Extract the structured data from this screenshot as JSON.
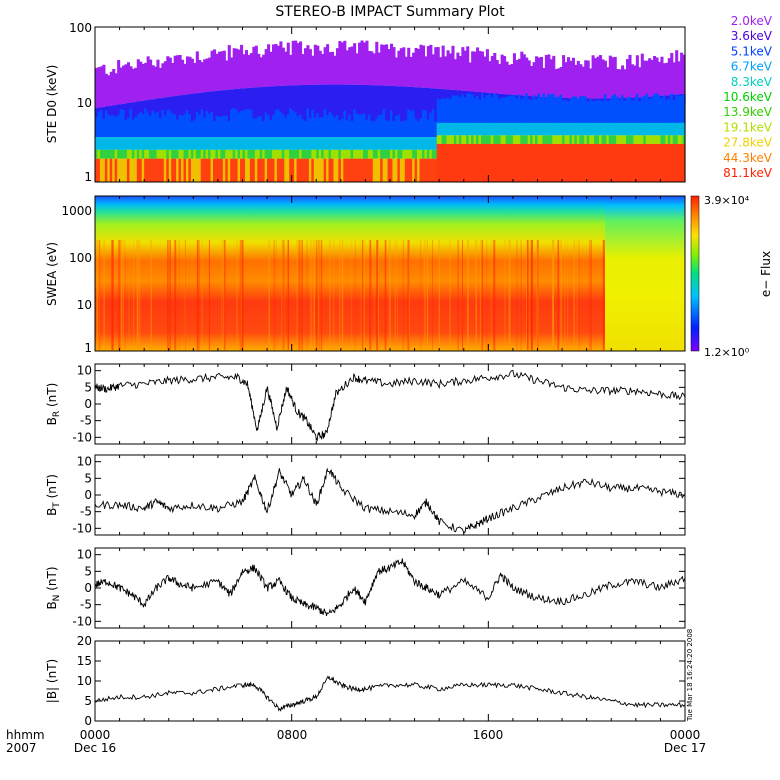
{
  "chart_data": {
    "type": "line",
    "title": "STEREO-B IMPACT Summary Plot",
    "x_axis": {
      "tick_labels": [
        "0000",
        "0800",
        "1600",
        "0000"
      ],
      "sub_labels": [
        "Dec 16",
        "",
        "",
        "Dec 17"
      ],
      "corner_label_1": "hhmm",
      "corner_label_2": "2007",
      "range_hours": [
        0,
        24
      ]
    },
    "timestamp": "Tue Mar 18 16:24:20 2008",
    "panels": [
      {
        "id": "ste",
        "ylabel": "STE D0 (keV)",
        "scale": "log",
        "ylim": [
          1,
          100
        ],
        "ytick_labels": [
          "100",
          "10",
          "1"
        ],
        "legend": [
          "2.0keV",
          "3.6keV",
          "5.1keV",
          "6.7keV",
          "8.3keV",
          "10.6keV",
          "13.9keV",
          "19.1keV",
          "27.8keV",
          "44.3keV",
          "81.1keV"
        ],
        "legend_colors": [
          "#a020f0",
          "#4b00e0",
          "#0040ff",
          "#00a0ff",
          "#00d0c0",
          "#00d000",
          "#30d000",
          "#b0e000",
          "#f0d000",
          "#ff8000",
          "#ff2000"
        ]
      },
      {
        "id": "swea",
        "ylabel": "SWEA (eV)",
        "scale": "log",
        "ylim": [
          1,
          2000
        ],
        "ytick_labels": [
          "1000",
          "100",
          "10",
          "1"
        ],
        "colorbar_max": "3.9×10⁴",
        "colorbar_min": "1.2×10⁰",
        "colorbar_label": "e− Flux"
      },
      {
        "id": "br",
        "ylabel_main": "B",
        "ylabel_sub": "R",
        "ylabel_unit": " (nT)",
        "ylim": [
          -12,
          12
        ],
        "ytick_labels": [
          "10",
          "5",
          "0",
          "-5",
          "-10"
        ],
        "yticks": [
          10,
          5,
          0,
          -5,
          -10
        ],
        "x": [
          0,
          0.5,
          1,
          2,
          3,
          4,
          5,
          5.8,
          6.2,
          6.6,
          7,
          7.4,
          7.8,
          8.2,
          8.6,
          9,
          9.4,
          9.8,
          10.5,
          11,
          12,
          13,
          14,
          15,
          16,
          17,
          18,
          19,
          20,
          21,
          22,
          23,
          24
        ],
        "y": [
          5,
          4.5,
          5.5,
          6,
          7,
          7.5,
          8,
          8,
          6,
          -8,
          5,
          -7,
          5,
          -2,
          -5,
          -10,
          -9,
          3,
          8,
          7,
          6,
          7,
          6,
          7,
          8,
          9,
          7,
          5,
          4,
          4,
          4,
          3,
          2
        ]
      },
      {
        "id": "bt",
        "ylabel_main": "B",
        "ylabel_sub": "T",
        "ylabel_unit": " (nT)",
        "ylim": [
          -12,
          12
        ],
        "ytick_labels": [
          "10",
          "5",
          "0",
          "-5",
          "-10"
        ],
        "yticks": [
          10,
          5,
          0,
          -5,
          -10
        ],
        "x": [
          0,
          1,
          2,
          2.5,
          3,
          4,
          5,
          6,
          6.5,
          7,
          7.5,
          8,
          8.5,
          9,
          9.5,
          10,
          11,
          12,
          13,
          13.5,
          14,
          15,
          15.5,
          16,
          17,
          18,
          19,
          20,
          21,
          22,
          23,
          24
        ],
        "y": [
          -3,
          -3,
          -4,
          -2,
          -4,
          -3,
          -4,
          -2,
          5,
          -5,
          7,
          0,
          5,
          -3,
          8,
          2,
          -4,
          -5,
          -6,
          -2,
          -8,
          -11,
          -9,
          -7,
          -4,
          -1,
          2,
          4,
          2,
          2,
          1,
          0
        ]
      },
      {
        "id": "bn",
        "ylabel_main": "B",
        "ylabel_sub": "N",
        "ylabel_unit": " (nT)",
        "ylim": [
          -12,
          12
        ],
        "ytick_labels": [
          "10",
          "5",
          "0",
          "-5",
          "-10"
        ],
        "yticks": [
          10,
          5,
          0,
          -5,
          -10
        ],
        "x": [
          0,
          0.5,
          1,
          1.5,
          2,
          2.5,
          3,
          3.5,
          4,
          5,
          5.5,
          6,
          6.5,
          7,
          7.5,
          8,
          8.5,
          9,
          9.5,
          10,
          10.5,
          11,
          11.5,
          12,
          12.5,
          13,
          13.5,
          14,
          15,
          16,
          16.5,
          17,
          18,
          19,
          20,
          21,
          22,
          23,
          24
        ],
        "y": [
          1,
          2,
          0,
          -2,
          -5,
          0,
          3,
          1,
          0,
          2,
          -2,
          5,
          6,
          0,
          2,
          -3,
          -5,
          -6,
          -8,
          -5,
          0,
          -4,
          5,
          6,
          8,
          2,
          0,
          -2,
          2,
          -3,
          4,
          0,
          -3,
          -4,
          -2,
          1,
          2,
          0,
          3
        ]
      },
      {
        "id": "bmag",
        "ylabel": "|B| (nT)",
        "ylim": [
          0,
          20
        ],
        "ytick_labels": [
          "20",
          "15",
          "10",
          "5",
          "0"
        ],
        "yticks": [
          20,
          15,
          10,
          5,
          0
        ],
        "x": [
          0,
          1,
          2,
          3,
          4,
          5,
          6,
          6.5,
          7,
          7.5,
          8,
          8.5,
          9,
          9.5,
          10,
          10.5,
          11,
          12,
          13,
          14,
          15,
          16,
          17,
          18,
          19,
          20,
          21,
          22,
          23,
          24
        ],
        "y": [
          5,
          6,
          6,
          7,
          7,
          8,
          9,
          9,
          6,
          3,
          4,
          5,
          6,
          11,
          9,
          8,
          8,
          9,
          9,
          8,
          9,
          9,
          9,
          8,
          7,
          6,
          5,
          4,
          4,
          4
        ]
      }
    ]
  }
}
